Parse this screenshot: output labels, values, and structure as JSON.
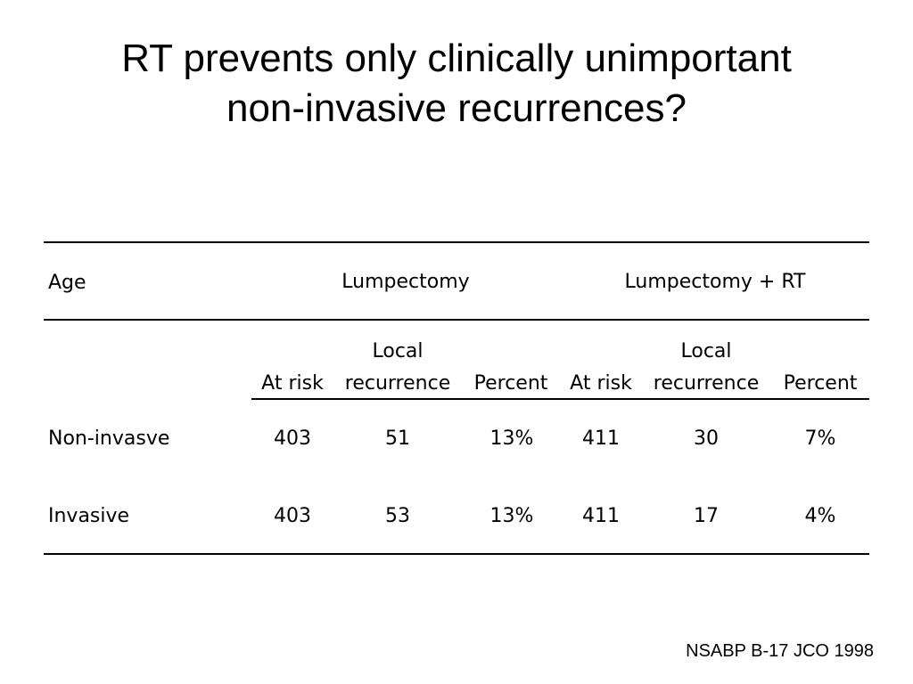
{
  "title": {
    "line1": "RT prevents only clinically unimportant",
    "line2": "non-invasive recurrences?"
  },
  "table": {
    "header": {
      "age": "Age",
      "group1": "Lumpectomy",
      "group2": "Lumpectomy + RT"
    },
    "subheader": {
      "g1_at_risk": "At risk",
      "g1_local_top": "Local",
      "g1_local_bottom": "recurrence",
      "g1_percent": "Percent",
      "g2_at_risk": "At risk",
      "g2_local_top": "Local",
      "g2_local_bottom": "recurrence",
      "g2_percent": "Percent"
    },
    "rows": [
      {
        "label": "Non-invasve",
        "g1_at_risk": "403",
        "g1_local": "51",
        "g1_percent": "13%",
        "g2_at_risk": "411",
        "g2_local": "30",
        "g2_percent": "7%"
      },
      {
        "label": "Invasive",
        "g1_at_risk": "403",
        "g1_local": "53",
        "g1_percent": "13%",
        "g2_at_risk": "411",
        "g2_local": "17",
        "g2_percent": "4%"
      }
    ]
  },
  "footer": "NSABP B-17 JCO 1998"
}
